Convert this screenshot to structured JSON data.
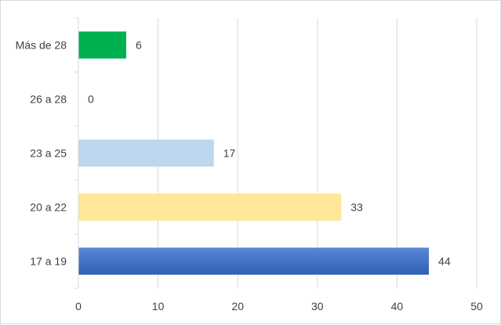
{
  "chart_data": {
    "type": "bar",
    "orientation": "horizontal",
    "title": "",
    "xlabel": "",
    "ylabel": "",
    "categories": [
      "17 a 19",
      "20 a 22",
      "23 a 25",
      "26 a 28",
      "Más de 28"
    ],
    "values": [
      44,
      33,
      17,
      0,
      6
    ],
    "bar_colors": [
      "#4472c4",
      "#ffe699",
      "#bdd7ee",
      "#a9d18e",
      "#00b050"
    ],
    "xlim": [
      0,
      50
    ],
    "xticks": [
      0,
      10,
      20,
      30,
      40,
      50
    ],
    "grid": "vertical",
    "legend": "none",
    "data_labels": true
  }
}
